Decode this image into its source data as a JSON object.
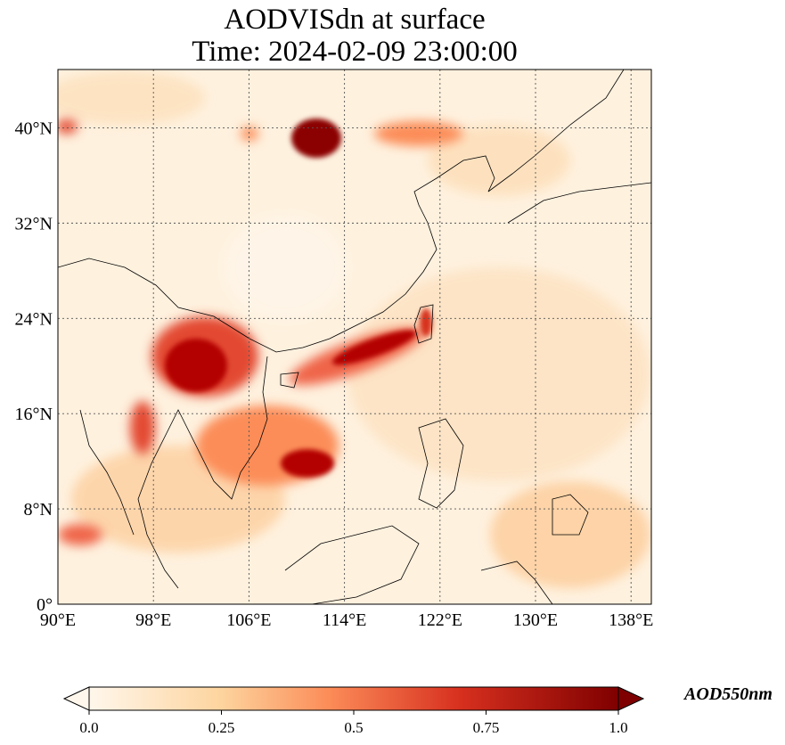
{
  "title": {
    "line1": "AODVISdn at surface",
    "line2": "Time: 2024-02-09 23:00:00"
  },
  "map": {
    "lon_ticks": [
      "90°E",
      "98°E",
      "106°E",
      "114°E",
      "122°E",
      "130°E",
      "138°E"
    ],
    "lat_ticks": [
      "40°N",
      "32°N",
      "24°N",
      "16°N",
      "8°N",
      "0°"
    ],
    "lon_range": [
      90,
      139.7
    ],
    "lat_range": [
      0,
      44.9
    ],
    "gridlines": true
  },
  "colorbar": {
    "label": "AOD550nm",
    "ticks": [
      "0.0",
      "0.25",
      "0.5",
      "0.75",
      "1.0"
    ],
    "range": [
      0,
      1
    ],
    "colormap": "OrRd",
    "extend": "both"
  },
  "colors": {
    "low": "#fff7ec",
    "mid": "#fdbb84",
    "high": "#7f0000"
  }
}
